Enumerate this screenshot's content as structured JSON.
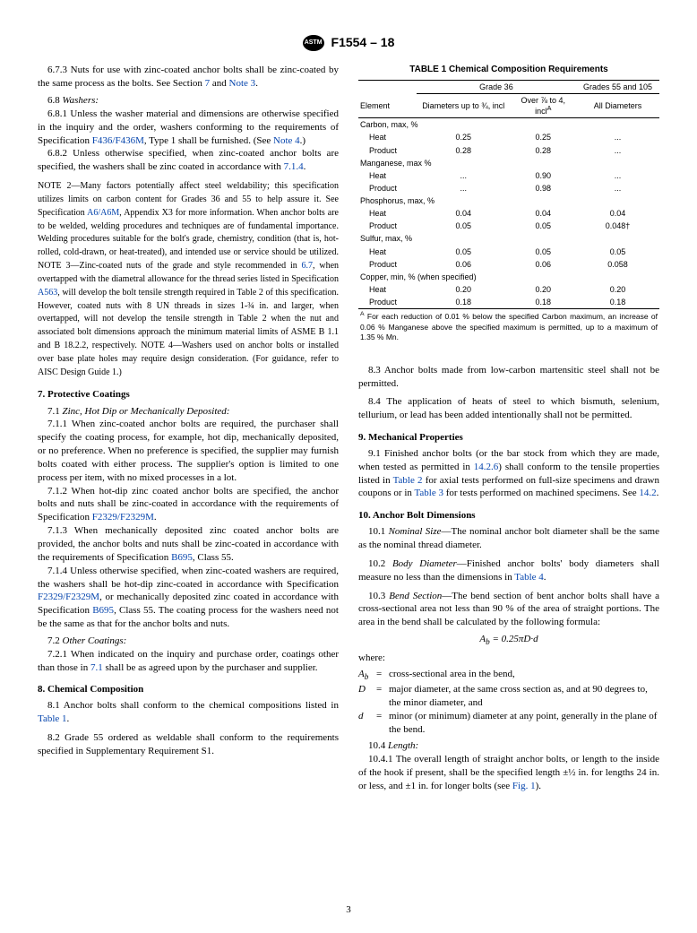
{
  "header": {
    "spec": "F1554 – 18"
  },
  "col1": {
    "p673": "6.7.3 Nuts for use with zinc-coated anchor bolts shall be zinc-coated by the same process as the bolts. See Section ",
    "p673_link1": "7",
    "p673_mid": " and ",
    "p673_link2": "Note 3",
    "p673_end": ".",
    "s68": "6.8",
    "s68_title": "Washers:",
    "p681a": "6.8.1 Unless the washer material and dimensions are otherwise specified in the inquiry and the order, washers conforming to the requirements of Specification ",
    "p681_link": "F436/F436M",
    "p681b": ", Type 1 shall be furnished. (See ",
    "p681_link2": "Note 4",
    "p681c": ".)",
    "p682a": "6.8.2 Unless otherwise specified, when zinc-coated anchor bolts are specified, the washers shall be zinc coated in accordance with ",
    "p682_link": "7.1.4",
    "p682b": ".",
    "note2a": "NOTE 2—Many factors potentially affect steel weldability; this specification utilizes limits on carbon content for Grades 36 and 55 to help assure it. See Specification ",
    "note2_link": "A6/A6M",
    "note2b": ", Appendix X3 for more information. When anchor bolts are to be welded, welding procedures and techniques are of fundamental importance. Welding procedures suitable for the bolt's grade, chemistry, condition (that is, hot-rolled, cold-drawn, or heat-treated), and intended use or service should be utilized.",
    "note3a": "NOTE 3—Zinc-coated nuts of the grade and style recommended in ",
    "note3_link1": "6.7",
    "note3b": ", when overtapped with the diametral allowance for the thread series listed in Specification ",
    "note3_link2": "A563",
    "note3c": ", will develop the bolt tensile strength required in Table 2 of this specification. However, coated nuts with 8 UN threads in sizes 1-¾ in. and larger, when overtapped, will not develop the tensile strength in Table 2 when the nut and associated bolt dimensions approach the minimum material limits of ASME B 1.1 and B 18.2.2, respectively.",
    "note4": "NOTE 4—Washers used on anchor bolts or installed over base plate holes may require design consideration. (For guidance, refer to AISC Design Guide 1.)",
    "s7": "7. Protective Coatings",
    "s71": "7.1",
    "s71_title": "Zinc, Hot Dip or Mechanically Deposited:",
    "p711": "7.1.1 When zinc-coated anchor bolts are required, the purchaser shall specify the coating process, for example, hot dip, mechanically deposited, or no preference. When no preference is specified, the supplier may furnish bolts coated with either process. The supplier's option is limited to one process per item, with no mixed processes in a lot.",
    "p712a": "7.1.2 When hot-dip zinc coated anchor bolts are specified, the anchor bolts and nuts shall be zinc-coated in accordance with the requirements of Specification ",
    "p712_link": "F2329/F2329M",
    "p712b": ".",
    "p713a": "7.1.3 When mechanically deposited zinc coated anchor bolts are provided, the anchor bolts and nuts shall be zinc-coated in accordance with the requirements of Specification ",
    "p713_link": "B695",
    "p713b": ", Class 55.",
    "p714a": "7.1.4 Unless otherwise specified, when zinc-coated washers are required, the washers shall be hot-dip zinc-coated in accordance with Specification ",
    "p714_link1": "F2329/F2329M",
    "p714b": ", or mechanically deposited zinc coated in accordance with Specification ",
    "p714_link2": "B695",
    "p714c": ", Class 55. The coating process for the washers need not be the same as that for the anchor bolts and nuts.",
    "s72": "7.2",
    "s72_title": "Other Coatings:",
    "p721a": "7.2.1 When indicated on the inquiry and purchase order, coatings other than those in ",
    "p721_link": "7.1",
    "p721b": " shall be as agreed upon by the purchaser and supplier.",
    "s8": "8. Chemical Composition",
    "p81a": "8.1 Anchor bolts shall conform to the chemical compositions listed in ",
    "p81_link": "Table 1",
    "p81b": ".",
    "p82": "8.2 Grade 55 ordered as weldable shall conform to the requirements specified in Supplementary Requirement S1."
  },
  "table1": {
    "title": "TABLE 1 Chemical Composition Requirements",
    "h_grade36": "Grade 36",
    "h_grades55": "Grades 55 and 105",
    "h_element": "Element",
    "h_diam1": "Diameters up to ¾, incl",
    "h_diam2": "Over ⅞ to 4, incl",
    "h_all": "All Diameters",
    "rows": [
      {
        "label": "Carbon, max, %",
        "indent": false
      },
      {
        "label": "Heat",
        "indent": true,
        "c1": "0.25",
        "c2": "0.25",
        "c3": "..."
      },
      {
        "label": "Product",
        "indent": true,
        "c1": "0.28",
        "c2": "0.28",
        "c3": "..."
      },
      {
        "label": "Manganese, max %",
        "indent": false
      },
      {
        "label": "Heat",
        "indent": true,
        "c1": "...",
        "c2": "0.90",
        "c3": "..."
      },
      {
        "label": "Product",
        "indent": true,
        "c1": "...",
        "c2": "0.98",
        "c3": "..."
      },
      {
        "label": "Phosphorus, max, %",
        "indent": false
      },
      {
        "label": "Heat",
        "indent": true,
        "c1": "0.04",
        "c2": "0.04",
        "c3": "0.04"
      },
      {
        "label": "Product",
        "indent": true,
        "c1": "0.05",
        "c2": "0.05",
        "c3": "0.048†"
      },
      {
        "label": "Sulfur, max, %",
        "indent": false
      },
      {
        "label": "Heat",
        "indent": true,
        "c1": "0.05",
        "c2": "0.05",
        "c3": "0.05"
      },
      {
        "label": "Product",
        "indent": true,
        "c1": "0.06",
        "c2": "0.06",
        "c3": "0.058"
      },
      {
        "label": "Copper, min, % (when specified)",
        "indent": false
      },
      {
        "label": "Heat",
        "indent": true,
        "c1": "0.20",
        "c2": "0.20",
        "c3": "0.20"
      },
      {
        "label": "Product",
        "indent": true,
        "c1": "0.18",
        "c2": "0.18",
        "c3": "0.18"
      }
    ],
    "footnote": "For each reduction of 0.01 % below the specified Carbon maximum, an increase of 0.06 % Manganese above the specified maximum is permitted, up to a maximum of 1.35 % Mn."
  },
  "col2": {
    "p83": "8.3 Anchor bolts made from low-carbon martensitic steel shall not be permitted.",
    "p84": "8.4 The application of heats of steel to which bismuth, selenium, tellurium, or lead has been added intentionally shall not be permitted.",
    "s9": "9. Mechanical Properties",
    "p91a": "9.1 Finished anchor bolts (or the bar stock from which they are made, when tested as permitted in ",
    "p91_link1": "14.2.6",
    "p91b": ") shall conform to the tensile properties listed in ",
    "p91_link2": "Table 2",
    "p91c": " for axial tests performed on full-size specimens and drawn coupons or in ",
    "p91_link3": "Table 3",
    "p91d": " for tests performed on machined specimens. See ",
    "p91_link4": "14.2",
    "p91e": ".",
    "s10": "10. Anchor Bolt Dimensions",
    "s101": "10.1",
    "s101_title": "Nominal Size",
    "s101_text": "—The nominal anchor bolt diameter shall be the same as the nominal thread diameter.",
    "s102": "10.2",
    "s102_title": "Body Diameter",
    "s102_texta": "—Finished anchor bolts' body diameters shall measure no less than the dimensions in ",
    "s102_link": "Table 4",
    "s102_textb": ".",
    "s103": "10.3",
    "s103_title": "Bend Section",
    "s103_text": "—The bend section of bent anchor bolts shall have a cross-sectional area not less than 90 % of the area of straight portions. The area in the bend shall be calculated by the following formula:",
    "formula": "A_b = 0.25πD·d",
    "where": "where:",
    "def_Ab": "A_b",
    "def_Ab_txt": "cross-sectional area in the bend,",
    "def_D": "D",
    "def_D_txt": "major diameter, at the same cross section as, and at 90 degrees to, the minor diameter, and",
    "def_d": "d",
    "def_d_txt": "minor (or minimum) diameter at any point, generally in the plane of the bend.",
    "s104": "10.4",
    "s104_title": "Length:",
    "p1041a": "10.4.1 The overall length of straight anchor bolts, or length to the inside of the hook if present, shall be the specified length ±½ in. for lengths 24 in. or less, and ±1 in. for longer bolts (see ",
    "p1041_link": "Fig. 1",
    "p1041b": ")."
  },
  "page": "3"
}
